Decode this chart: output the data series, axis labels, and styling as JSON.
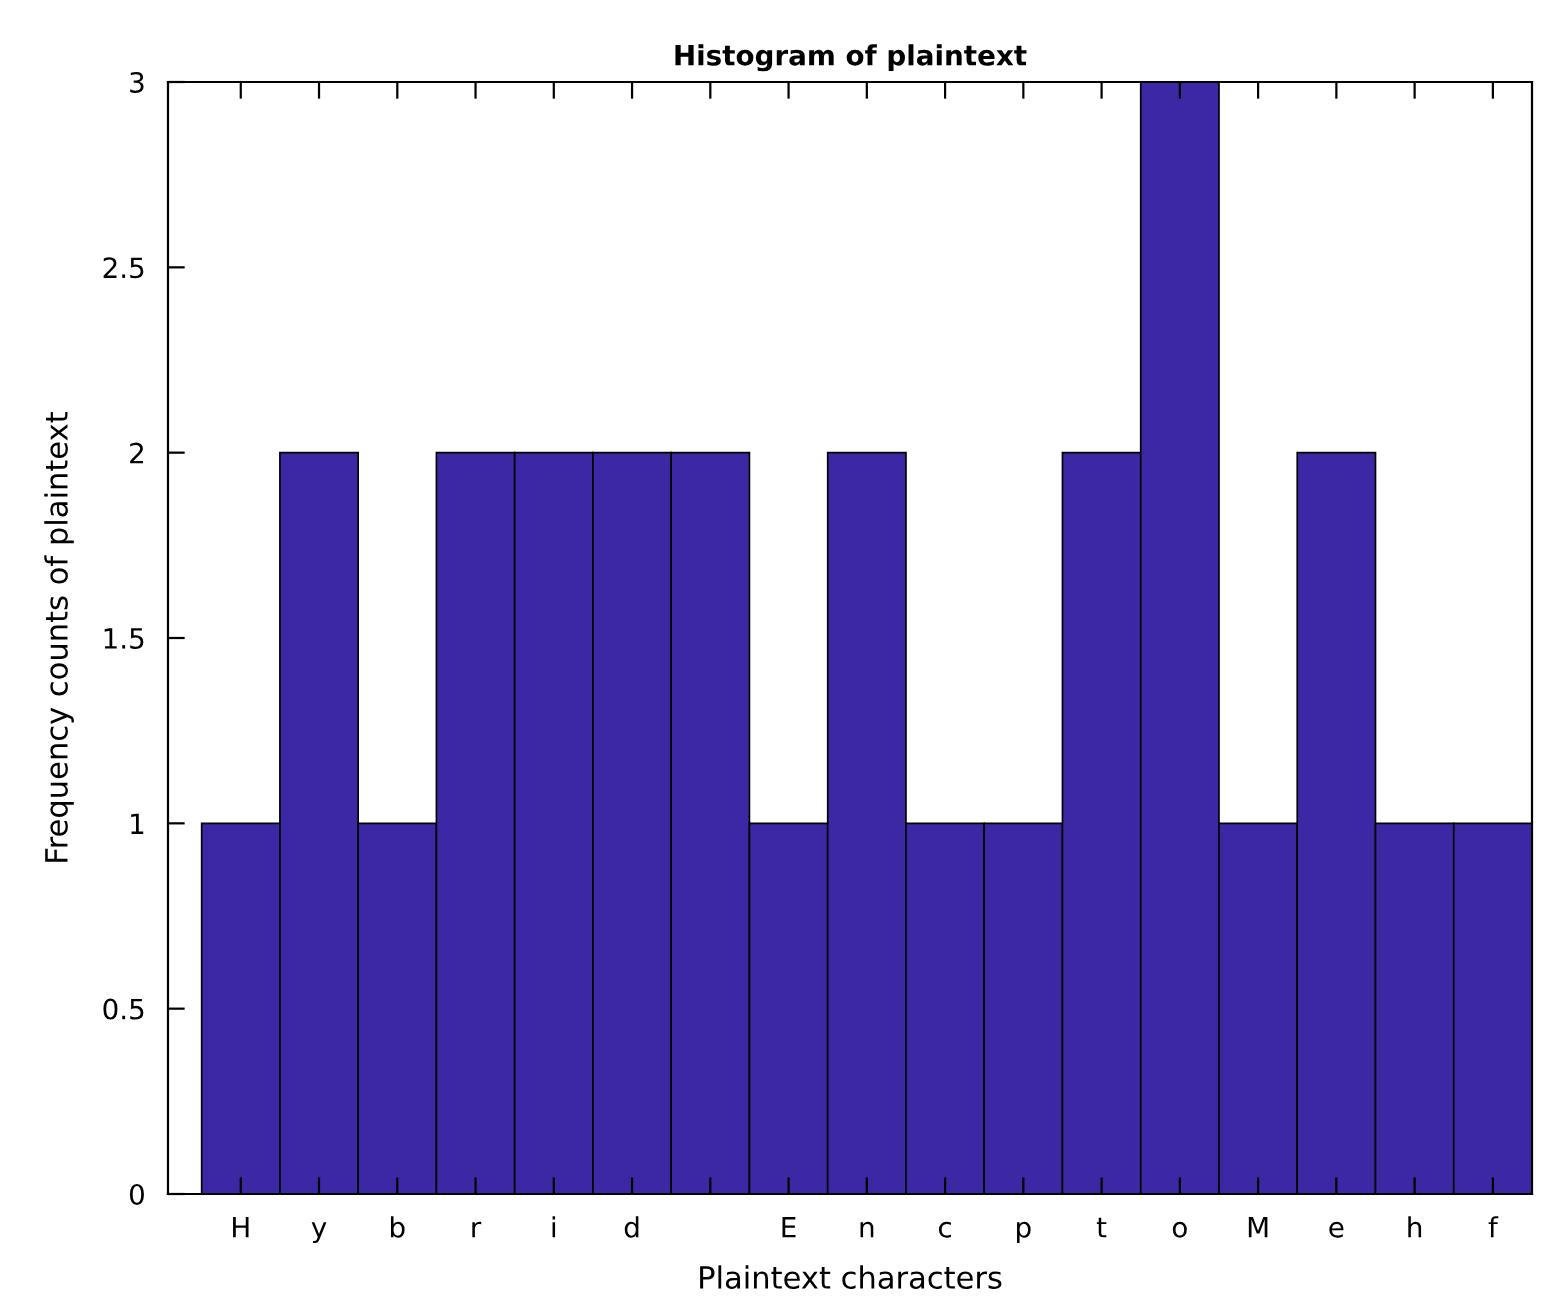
{
  "chart_data": {
    "type": "bar",
    "title": "Histogram of plaintext",
    "xlabel": "Plaintext characters",
    "ylabel": "Frequency counts of plaintext",
    "categories": [
      "H",
      "y",
      "b",
      "r",
      "i",
      "d",
      null,
      "E",
      "n",
      "c",
      "p",
      "t",
      "o",
      "M",
      "e",
      "h",
      "f"
    ],
    "values": [
      1,
      2,
      1,
      2,
      2,
      2,
      2,
      1,
      2,
      1,
      1,
      2,
      3,
      1,
      2,
      1,
      1
    ],
    "color": "#3c28a5",
    "ylim": [
      0,
      3
    ],
    "yticks": [
      0,
      0.5,
      1,
      1.5,
      2,
      2.5,
      3
    ],
    "grid": false
  }
}
